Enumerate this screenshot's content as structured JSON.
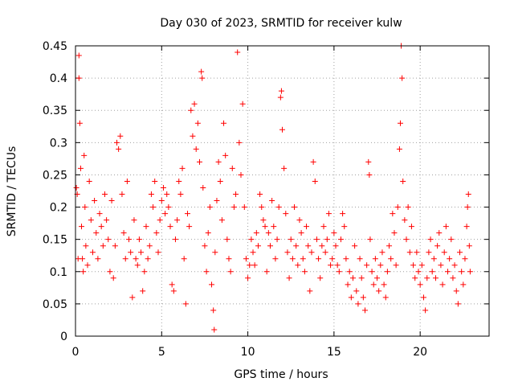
{
  "chart_data": {
    "type": "scatter",
    "title": "Day 030 of 2023, SRMTID for receiver kulw",
    "xlabel": "GPS time / hours",
    "ylabel": "SRMTID / TECUs",
    "xlim": [
      0,
      24
    ],
    "ylim": [
      0,
      0.45
    ],
    "xticks": [
      0,
      5,
      10,
      15,
      20
    ],
    "yticks": [
      0,
      0.05,
      0.1,
      0.15,
      0.2,
      0.25,
      0.3,
      0.35,
      0.4,
      0.45
    ],
    "xtick_labels": [
      "0",
      "5",
      "10",
      "15",
      "20"
    ],
    "ytick_labels": [
      "0",
      "0.05",
      "0.1",
      "0.15",
      "0.2",
      "0.25",
      "0.3",
      "0.35",
      "0.4",
      "0.45"
    ],
    "grid": true,
    "marker": "+",
    "color": "#ff0000",
    "series": [
      {
        "name": "SRMTID",
        "points": [
          [
            0.05,
            0.23
          ],
          [
            0.1,
            0.22
          ],
          [
            0.15,
            0.12
          ],
          [
            0.2,
            0.435
          ],
          [
            0.2,
            0.4
          ],
          [
            0.25,
            0.33
          ],
          [
            0.3,
            0.26
          ],
          [
            0.35,
            0.17
          ],
          [
            0.4,
            0.12
          ],
          [
            0.45,
            0.1
          ],
          [
            0.5,
            0.28
          ],
          [
            0.55,
            0.2
          ],
          [
            0.6,
            0.14
          ],
          [
            0.7,
            0.11
          ],
          [
            0.8,
            0.24
          ],
          [
            0.9,
            0.18
          ],
          [
            1.0,
            0.13
          ],
          [
            1.1,
            0.21
          ],
          [
            1.2,
            0.16
          ],
          [
            1.3,
            0.12
          ],
          [
            1.4,
            0.19
          ],
          [
            1.5,
            0.17
          ],
          [
            1.6,
            0.14
          ],
          [
            1.7,
            0.22
          ],
          [
            1.8,
            0.18
          ],
          [
            1.9,
            0.15
          ],
          [
            2.0,
            0.1
          ],
          [
            2.1,
            0.21
          ],
          [
            2.2,
            0.09
          ],
          [
            2.3,
            0.14
          ],
          [
            2.4,
            0.3
          ],
          [
            2.5,
            0.29
          ],
          [
            2.6,
            0.31
          ],
          [
            2.7,
            0.22
          ],
          [
            2.8,
            0.16
          ],
          [
            2.9,
            0.12
          ],
          [
            3.0,
            0.24
          ],
          [
            3.1,
            0.15
          ],
          [
            3.2,
            0.13
          ],
          [
            3.3,
            0.06
          ],
          [
            3.4,
            0.18
          ],
          [
            3.5,
            0.12
          ],
          [
            3.6,
            0.11
          ],
          [
            3.7,
            0.15
          ],
          [
            3.8,
            0.13
          ],
          [
            3.9,
            0.07
          ],
          [
            4.0,
            0.1
          ],
          [
            4.1,
            0.17
          ],
          [
            4.2,
            0.12
          ],
          [
            4.3,
            0.14
          ],
          [
            4.4,
            0.22
          ],
          [
            4.5,
            0.2
          ],
          [
            4.6,
            0.24
          ],
          [
            4.7,
            0.16
          ],
          [
            4.8,
            0.13
          ],
          [
            4.9,
            0.18
          ],
          [
            5.0,
            0.21
          ],
          [
            5.1,
            0.23
          ],
          [
            5.2,
            0.19
          ],
          [
            5.3,
            0.22
          ],
          [
            5.4,
            0.2
          ],
          [
            5.5,
            0.17
          ],
          [
            5.6,
            0.08
          ],
          [
            5.7,
            0.07
          ],
          [
            5.8,
            0.15
          ],
          [
            5.9,
            0.18
          ],
          [
            6.0,
            0.24
          ],
          [
            6.1,
            0.22
          ],
          [
            6.2,
            0.26
          ],
          [
            6.3,
            0.12
          ],
          [
            6.4,
            0.05
          ],
          [
            6.5,
            0.19
          ],
          [
            6.6,
            0.17
          ],
          [
            6.7,
            0.35
          ],
          [
            6.8,
            0.31
          ],
          [
            6.9,
            0.36
          ],
          [
            7.0,
            0.29
          ],
          [
            7.1,
            0.33
          ],
          [
            7.2,
            0.27
          ],
          [
            7.3,
            0.41
          ],
          [
            7.35,
            0.4
          ],
          [
            7.4,
            0.23
          ],
          [
            7.5,
            0.14
          ],
          [
            7.6,
            0.1
          ],
          [
            7.7,
            0.16
          ],
          [
            7.8,
            0.2
          ],
          [
            7.9,
            0.08
          ],
          [
            8.0,
            0.04
          ],
          [
            8.05,
            0.01
          ],
          [
            8.1,
            0.13
          ],
          [
            8.2,
            0.21
          ],
          [
            8.3,
            0.27
          ],
          [
            8.4,
            0.24
          ],
          [
            8.5,
            0.18
          ],
          [
            8.6,
            0.33
          ],
          [
            8.7,
            0.28
          ],
          [
            8.8,
            0.15
          ],
          [
            8.9,
            0.12
          ],
          [
            9.0,
            0.1
          ],
          [
            9.1,
            0.26
          ],
          [
            9.2,
            0.2
          ],
          [
            9.3,
            0.22
          ],
          [
            9.4,
            0.44
          ],
          [
            9.5,
            0.3
          ],
          [
            9.6,
            0.25
          ],
          [
            9.7,
            0.36
          ],
          [
            9.8,
            0.2
          ],
          [
            9.9,
            0.12
          ],
          [
            10.0,
            0.09
          ],
          [
            10.1,
            0.11
          ],
          [
            10.2,
            0.15
          ],
          [
            10.3,
            0.13
          ],
          [
            10.4,
            0.11
          ],
          [
            10.5,
            0.16
          ],
          [
            10.6,
            0.14
          ],
          [
            10.7,
            0.22
          ],
          [
            10.8,
            0.2
          ],
          [
            10.9,
            0.18
          ],
          [
            11.0,
            0.17
          ],
          [
            11.1,
            0.1
          ],
          [
            11.2,
            0.16
          ],
          [
            11.3,
            0.14
          ],
          [
            11.4,
            0.21
          ],
          [
            11.5,
            0.17
          ],
          [
            11.6,
            0.12
          ],
          [
            11.7,
            0.15
          ],
          [
            11.8,
            0.2
          ],
          [
            11.9,
            0.37
          ],
          [
            11.95,
            0.38
          ],
          [
            12.0,
            0.32
          ],
          [
            12.1,
            0.26
          ],
          [
            12.2,
            0.19
          ],
          [
            12.3,
            0.13
          ],
          [
            12.4,
            0.09
          ],
          [
            12.5,
            0.15
          ],
          [
            12.6,
            0.12
          ],
          [
            12.7,
            0.2
          ],
          [
            12.8,
            0.14
          ],
          [
            12.9,
            0.11
          ],
          [
            13.0,
            0.18
          ],
          [
            13.1,
            0.16
          ],
          [
            13.2,
            0.12
          ],
          [
            13.3,
            0.1
          ],
          [
            13.4,
            0.17
          ],
          [
            13.5,
            0.14
          ],
          [
            13.6,
            0.07
          ],
          [
            13.7,
            0.13
          ],
          [
            13.8,
            0.27
          ],
          [
            13.9,
            0.24
          ],
          [
            14.0,
            0.15
          ],
          [
            14.1,
            0.12
          ],
          [
            14.2,
            0.09
          ],
          [
            14.3,
            0.14
          ],
          [
            14.4,
            0.17
          ],
          [
            14.5,
            0.13
          ],
          [
            14.6,
            0.15
          ],
          [
            14.7,
            0.19
          ],
          [
            14.8,
            0.11
          ],
          [
            14.9,
            0.12
          ],
          [
            15.0,
            0.16
          ],
          [
            15.1,
            0.14
          ],
          [
            15.2,
            0.11
          ],
          [
            15.3,
            0.1
          ],
          [
            15.4,
            0.15
          ],
          [
            15.5,
            0.19
          ],
          [
            15.6,
            0.17
          ],
          [
            15.7,
            0.12
          ],
          [
            15.8,
            0.08
          ],
          [
            15.9,
            0.1
          ],
          [
            16.0,
            0.06
          ],
          [
            16.1,
            0.09
          ],
          [
            16.2,
            0.14
          ],
          [
            16.3,
            0.07
          ],
          [
            16.4,
            0.05
          ],
          [
            16.5,
            0.12
          ],
          [
            16.6,
            0.09
          ],
          [
            16.7,
            0.06
          ],
          [
            16.8,
            0.04
          ],
          [
            16.9,
            0.11
          ],
          [
            17.0,
            0.27
          ],
          [
            17.05,
            0.25
          ],
          [
            17.1,
            0.15
          ],
          [
            17.2,
            0.1
          ],
          [
            17.3,
            0.08
          ],
          [
            17.4,
            0.12
          ],
          [
            17.5,
            0.09
          ],
          [
            17.6,
            0.07
          ],
          [
            17.7,
            0.11
          ],
          [
            17.8,
            0.13
          ],
          [
            17.9,
            0.08
          ],
          [
            18.0,
            0.06
          ],
          [
            18.1,
            0.1
          ],
          [
            18.2,
            0.14
          ],
          [
            18.3,
            0.12
          ],
          [
            18.4,
            0.19
          ],
          [
            18.5,
            0.16
          ],
          [
            18.6,
            0.11
          ],
          [
            18.7,
            0.2
          ],
          [
            18.8,
            0.29
          ],
          [
            18.85,
            0.33
          ],
          [
            18.9,
            0.45
          ],
          [
            18.95,
            0.4
          ],
          [
            19.0,
            0.24
          ],
          [
            19.1,
            0.18
          ],
          [
            19.2,
            0.15
          ],
          [
            19.3,
            0.2
          ],
          [
            19.4,
            0.13
          ],
          [
            19.5,
            0.17
          ],
          [
            19.6,
            0.11
          ],
          [
            19.7,
            0.09
          ],
          [
            19.8,
            0.13
          ],
          [
            19.9,
            0.1
          ],
          [
            20.0,
            0.08
          ],
          [
            20.1,
            0.11
          ],
          [
            20.2,
            0.06
          ],
          [
            20.3,
            0.04
          ],
          [
            20.4,
            0.09
          ],
          [
            20.5,
            0.13
          ],
          [
            20.6,
            0.15
          ],
          [
            20.7,
            0.1
          ],
          [
            20.8,
            0.12
          ],
          [
            20.9,
            0.09
          ],
          [
            21.0,
            0.14
          ],
          [
            21.1,
            0.16
          ],
          [
            21.2,
            0.11
          ],
          [
            21.3,
            0.08
          ],
          [
            21.4,
            0.13
          ],
          [
            21.5,
            0.17
          ],
          [
            21.6,
            0.1
          ],
          [
            21.7,
            0.12
          ],
          [
            21.8,
            0.15
          ],
          [
            21.9,
            0.09
          ],
          [
            22.0,
            0.11
          ],
          [
            22.1,
            0.07
          ],
          [
            22.2,
            0.05
          ],
          [
            22.3,
            0.13
          ],
          [
            22.4,
            0.1
          ],
          [
            22.5,
            0.08
          ],
          [
            22.6,
            0.12
          ],
          [
            22.7,
            0.17
          ],
          [
            22.75,
            0.2
          ],
          [
            22.8,
            0.22
          ],
          [
            22.85,
            0.14
          ],
          [
            22.9,
            0.1
          ]
        ]
      }
    ]
  }
}
